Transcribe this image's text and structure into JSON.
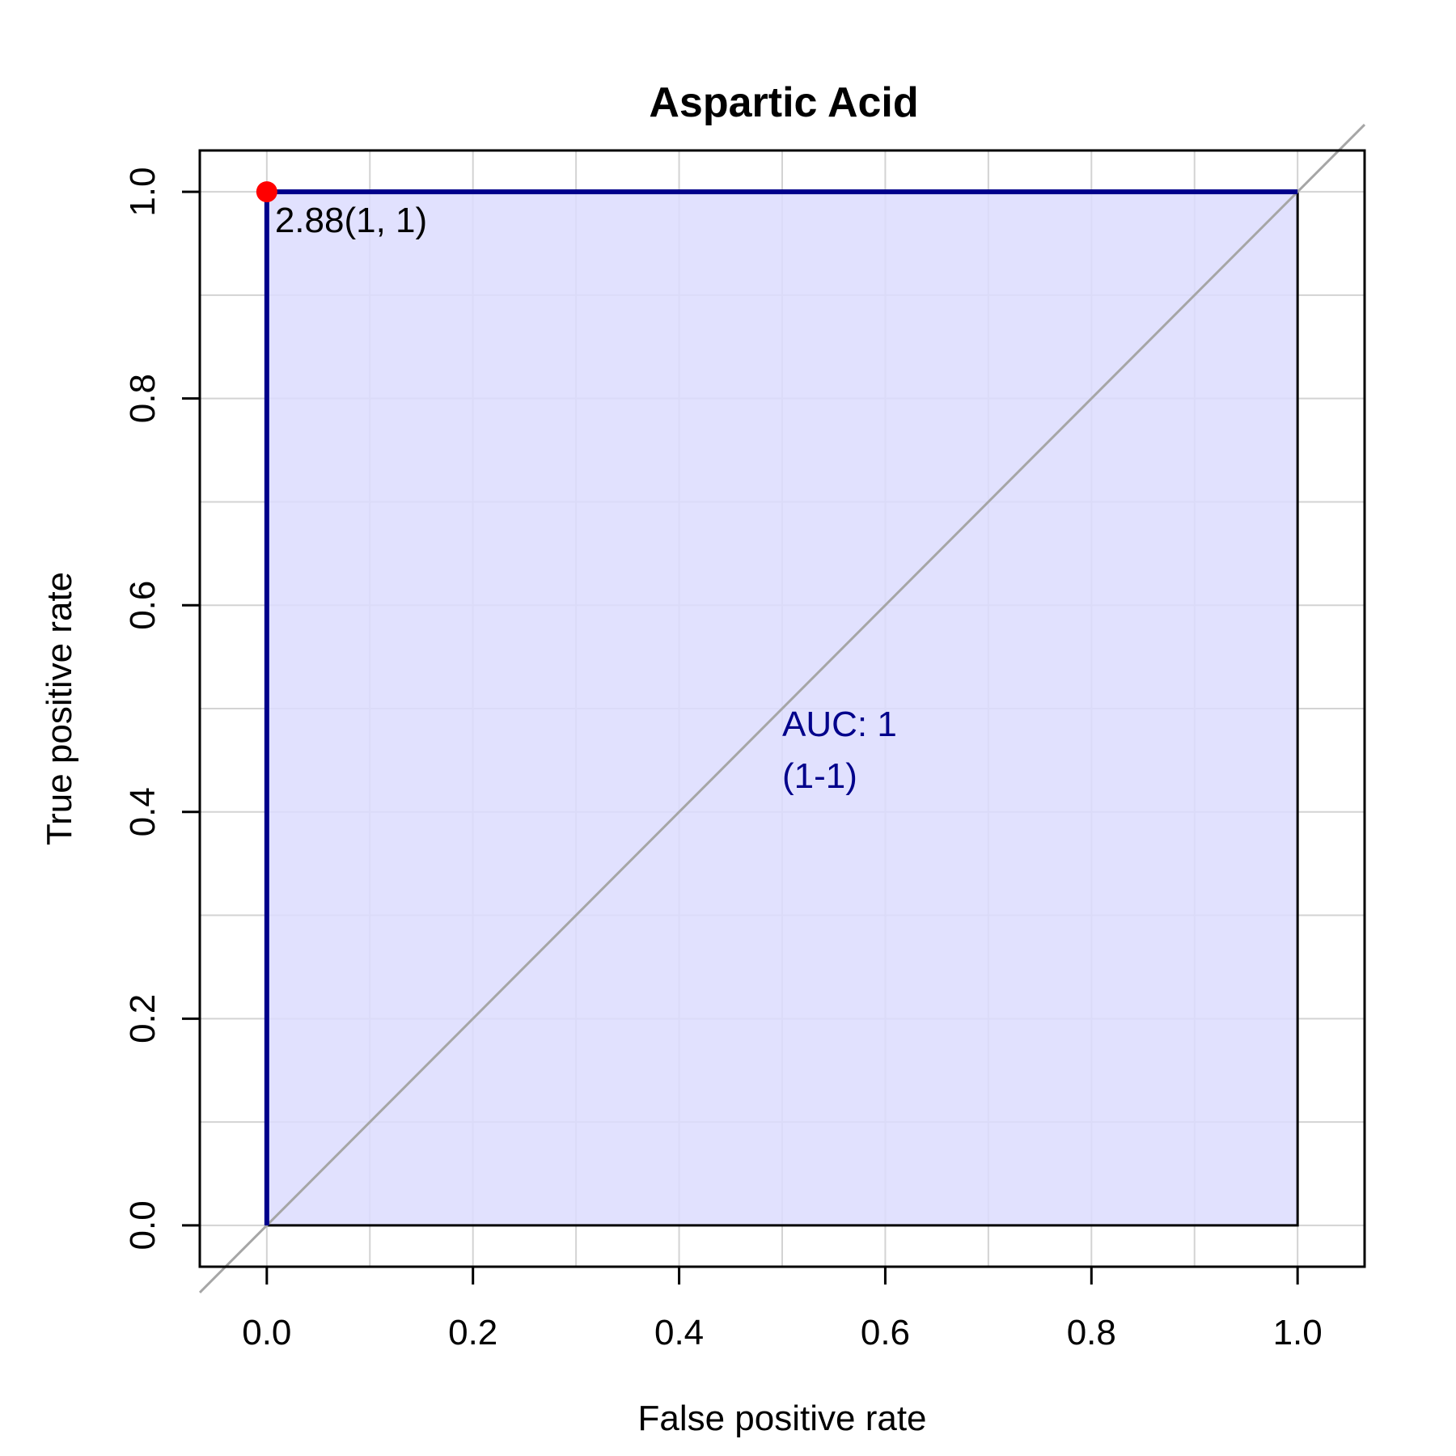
{
  "chart_data": {
    "type": "line",
    "title": "Aspartic Acid",
    "xlabel": "False positive rate",
    "ylabel": "True positive rate",
    "xlim": [
      -0.065,
      1.065
    ],
    "ylim": [
      -0.04,
      1.04
    ],
    "xticks": [
      0.0,
      0.2,
      0.4,
      0.6,
      0.8,
      1.0
    ],
    "xtick_labels": [
      "0.0",
      "0.2",
      "0.4",
      "0.6",
      "0.8",
      "1.0"
    ],
    "yticks": [
      0.0,
      0.2,
      0.4,
      0.6,
      0.8,
      1.0
    ],
    "ytick_labels": [
      "0.0",
      "0.2",
      "0.4",
      "0.6",
      "0.8",
      "1.0"
    ],
    "grid": true,
    "grid_step": 0.1,
    "series": [
      {
        "x": [
          0,
          0,
          1
        ],
        "y": [
          0,
          1,
          1
        ],
        "color": "#00008b",
        "fill": "#dcdcfe"
      }
    ],
    "reference_line": {
      "x": [
        -0.065,
        1.065
      ],
      "y": [
        -0.065,
        1.065
      ],
      "color": "#a6a6a6"
    },
    "threshold_point": {
      "x": 0,
      "y": 1,
      "label": "2.88(1, 1)",
      "color": "#ff0000"
    },
    "auc_text": {
      "line1": "AUC: 1",
      "line2": "(1-1)",
      "x": 0.5,
      "y": 0.5,
      "color": "#00008b"
    }
  }
}
